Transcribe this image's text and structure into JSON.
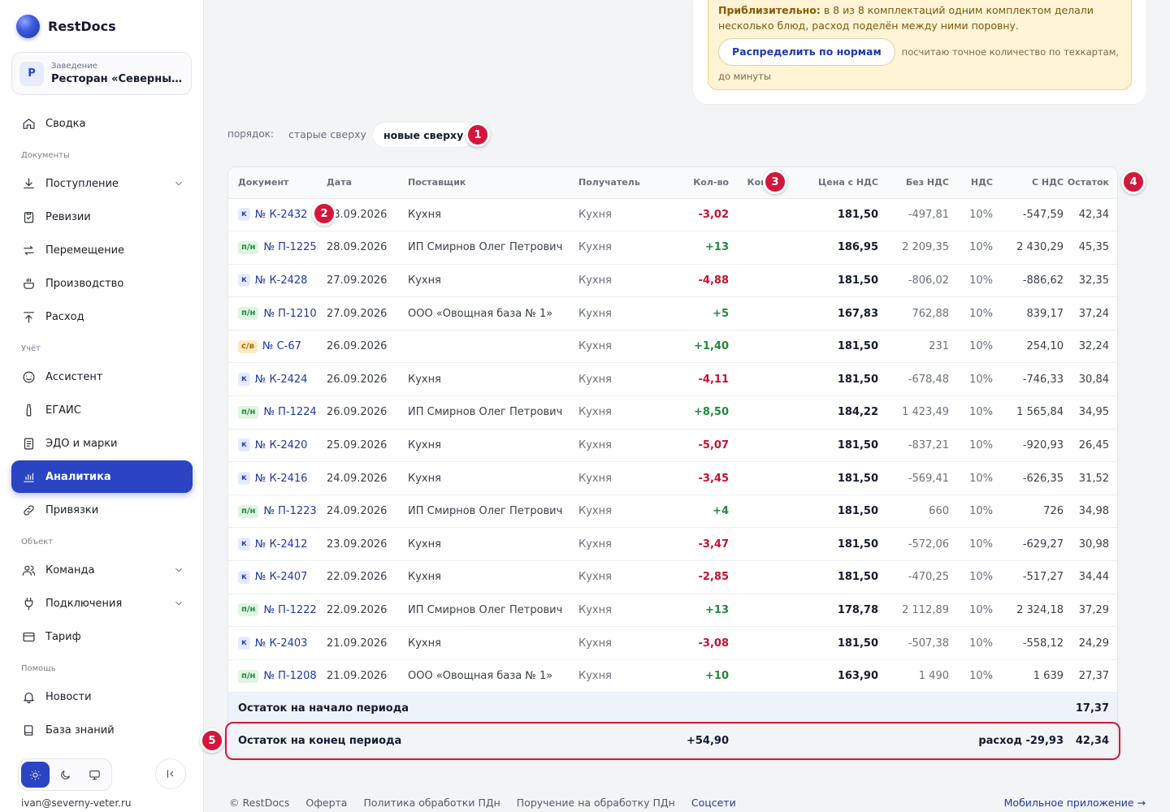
{
  "app": {
    "name": "RestDocs"
  },
  "venue": {
    "caption": "Заведение",
    "avatar": "Р",
    "name": "Ресторан «Северный ветер»"
  },
  "nav": {
    "summary": "Сводка",
    "section_docs": "Документы",
    "incoming": "Поступление",
    "audits": "Ревизии",
    "transfer": "Перемещение",
    "production": "Производство",
    "expense": "Расход",
    "section_accounting": "Учёт",
    "assistant": "Ассистент",
    "egais": "ЕГАИС",
    "edo": "ЭДО и марки",
    "analytics": "Аналитика",
    "bindings": "Привязки",
    "section_object": "Объект",
    "team": "Команда",
    "connections": "Подключения",
    "tariff": "Тариф",
    "section_help": "Помощь",
    "news": "Новости",
    "kb": "База знаний"
  },
  "user": {
    "email": "ivan@severny-veter.ru"
  },
  "notice": {
    "title": "Приблизительно:",
    "text": "в 8 из 8 комплектаций одним комплектом делали несколько блюд, расход поделён между ними поровну.",
    "button": "Распределить по нормам",
    "hint": "посчитаю точное количество по техкартам, до минуты"
  },
  "sort": {
    "label": "порядок:",
    "old_first": "старые сверху",
    "new_first": "новые сверху"
  },
  "markers": [
    "1",
    "2",
    "3",
    "4",
    "5"
  ],
  "table": {
    "headers": {
      "doc": "Документ",
      "date": "Дата",
      "supplier": "Поставщик",
      "recipient": "Получатель",
      "qty": "Кол-во",
      "comp": "Комп.",
      "price_vat": "Цена с НДС",
      "no_vat": "Без НДС",
      "vat": "НДС",
      "with_vat": "С НДС",
      "rest": "Остаток"
    },
    "rows": [
      {
        "type": "к",
        "doc": "№ К-2432",
        "date": "28.09.2026",
        "supplier": "Кухня",
        "recipient": "Кухня",
        "qty": "-3,02",
        "comp": "",
        "price": "181,50",
        "no_vat": "-497,81",
        "vat": "10%",
        "with_vat": "-547,59",
        "rest": "42,34"
      },
      {
        "type": "п/н",
        "doc": "№ П-1225",
        "date": "28.09.2026",
        "supplier": "ИП Смирнов Олег Петрович",
        "recipient": "Кухня",
        "qty": "+13",
        "comp": "",
        "price": "186,95",
        "no_vat": "2 209,35",
        "vat": "10%",
        "with_vat": "2 430,29",
        "rest": "45,35"
      },
      {
        "type": "к",
        "doc": "№ К-2428",
        "date": "27.09.2026",
        "supplier": "Кухня",
        "recipient": "Кухня",
        "qty": "-4,88",
        "comp": "",
        "price": "181,50",
        "no_vat": "-806,02",
        "vat": "10%",
        "with_vat": "-886,62",
        "rest": "32,35"
      },
      {
        "type": "п/н",
        "doc": "№ П-1210",
        "date": "27.09.2026",
        "supplier": "ООО «Овощная база № 1»",
        "recipient": "Кухня",
        "qty": "+5",
        "comp": "",
        "price": "167,83",
        "no_vat": "762,88",
        "vat": "10%",
        "with_vat": "839,17",
        "rest": "37,24"
      },
      {
        "type": "с/в",
        "doc": "№ С-67",
        "date": "26.09.2026",
        "supplier": "",
        "recipient": "Кухня",
        "qty": "+1,40",
        "comp": "",
        "price": "181,50",
        "no_vat": "231",
        "vat": "10%",
        "with_vat": "254,10",
        "rest": "32,24"
      },
      {
        "type": "к",
        "doc": "№ К-2424",
        "date": "26.09.2026",
        "supplier": "Кухня",
        "recipient": "Кухня",
        "qty": "-4,11",
        "comp": "",
        "price": "181,50",
        "no_vat": "-678,48",
        "vat": "10%",
        "with_vat": "-746,33",
        "rest": "30,84"
      },
      {
        "type": "п/н",
        "doc": "№ П-1224",
        "date": "26.09.2026",
        "supplier": "ИП Смирнов Олег Петрович",
        "recipient": "Кухня",
        "qty": "+8,50",
        "comp": "",
        "price": "184,22",
        "no_vat": "1 423,49",
        "vat": "10%",
        "with_vat": "1 565,84",
        "rest": "34,95"
      },
      {
        "type": "к",
        "doc": "№ К-2420",
        "date": "25.09.2026",
        "supplier": "Кухня",
        "recipient": "Кухня",
        "qty": "-5,07",
        "comp": "",
        "price": "181,50",
        "no_vat": "-837,21",
        "vat": "10%",
        "with_vat": "-920,93",
        "rest": "26,45"
      },
      {
        "type": "к",
        "doc": "№ К-2416",
        "date": "24.09.2026",
        "supplier": "Кухня",
        "recipient": "Кухня",
        "qty": "-3,45",
        "comp": "",
        "price": "181,50",
        "no_vat": "-569,41",
        "vat": "10%",
        "with_vat": "-626,35",
        "rest": "31,52"
      },
      {
        "type": "п/н",
        "doc": "№ П-1223",
        "date": "24.09.2026",
        "supplier": "ИП Смирнов Олег Петрович",
        "recipient": "Кухня",
        "qty": "+4",
        "comp": "",
        "price": "181,50",
        "no_vat": "660",
        "vat": "10%",
        "with_vat": "726",
        "rest": "34,98"
      },
      {
        "type": "к",
        "doc": "№ К-2412",
        "date": "23.09.2026",
        "supplier": "Кухня",
        "recipient": "Кухня",
        "qty": "-3,47",
        "comp": "",
        "price": "181,50",
        "no_vat": "-572,06",
        "vat": "10%",
        "with_vat": "-629,27",
        "rest": "30,98"
      },
      {
        "type": "к",
        "doc": "№ К-2407",
        "date": "22.09.2026",
        "supplier": "Кухня",
        "recipient": "Кухня",
        "qty": "-2,85",
        "comp": "",
        "price": "181,50",
        "no_vat": "-470,25",
        "vat": "10%",
        "with_vat": "-517,27",
        "rest": "34,44"
      },
      {
        "type": "п/н",
        "doc": "№ П-1222",
        "date": "22.09.2026",
        "supplier": "ИП Смирнов Олег Петрович",
        "recipient": "Кухня",
        "qty": "+13",
        "comp": "",
        "price": "178,78",
        "no_vat": "2 112,89",
        "vat": "10%",
        "with_vat": "2 324,18",
        "rest": "37,29"
      },
      {
        "type": "к",
        "doc": "№ К-2403",
        "date": "21.09.2026",
        "supplier": "Кухня",
        "recipient": "Кухня",
        "qty": "-3,08",
        "comp": "",
        "price": "181,50",
        "no_vat": "-507,38",
        "vat": "10%",
        "with_vat": "-558,12",
        "rest": "24,29"
      },
      {
        "type": "п/н",
        "doc": "№ П-1208",
        "date": "21.09.2026",
        "supplier": "ООО «Овощная база № 1»",
        "recipient": "Кухня",
        "qty": "+10",
        "comp": "",
        "price": "163,90",
        "no_vat": "1 490",
        "vat": "10%",
        "with_vat": "1 639",
        "rest": "27,37"
      }
    ],
    "start_label": "Остаток на начало периода",
    "start_rest": "17,37",
    "end_label": "Остаток на конец периода",
    "end_income": "+54,90",
    "end_expense": "расход -29,93",
    "end_rest": "42,34"
  },
  "footer": {
    "copyright": "© RestDocs",
    "offer": "Оферта",
    "privacy": "Политика обработки ПДн",
    "assignment": "Поручение на обработку ПДн",
    "social": "Соцсети",
    "mobile": "Мобильное приложение →"
  },
  "colors": {
    "accent": "#2a44c4",
    "marker": "#d4163c",
    "positive": "#1f8a3a",
    "negative": "#c8102e",
    "notice_bg": "#fff4d6"
  }
}
